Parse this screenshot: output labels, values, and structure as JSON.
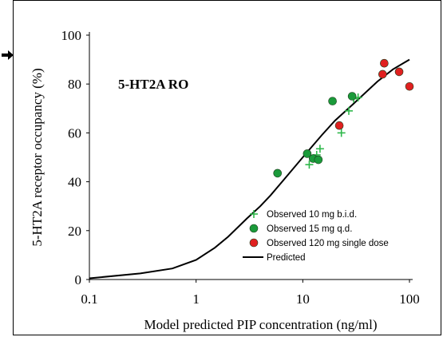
{
  "chart_data": {
    "type": "scatter",
    "title": "5-HT2A RO",
    "xlabel": "Model predicted PIP concentration (ng/ml)",
    "ylabel": "5-HT2A receptor occupancy (%)",
    "xscale": "log",
    "xlim": [
      0.1,
      100
    ],
    "ylim": [
      0,
      100
    ],
    "x_ticks": [
      "0.1",
      "1",
      "10",
      "100"
    ],
    "x_tick_values": [
      0.1,
      1,
      10,
      100
    ],
    "y_ticks": [
      "0",
      "20",
      "40",
      "60",
      "80",
      "100"
    ],
    "y_tick_values": [
      0,
      20,
      40,
      60,
      80,
      100
    ],
    "grid": false,
    "legend_position": "bottom-right",
    "series": [
      {
        "name": "Observed 10 mg b.i.d.",
        "marker": "plus",
        "color": "#2eb84a",
        "points": [
          [
            11.5,
            47
          ],
          [
            13.5,
            51
          ],
          [
            14.5,
            53.5
          ],
          [
            23,
            60
          ],
          [
            27,
            69
          ],
          [
            30,
            74
          ],
          [
            33,
            74.5
          ]
        ]
      },
      {
        "name": "Observed 15 mg q.d.",
        "marker": "circle",
        "color": "#1a9a3a",
        "points": [
          [
            5.8,
            43.5
          ],
          [
            11,
            51.5
          ],
          [
            12.5,
            49.5
          ],
          [
            14,
            49
          ],
          [
            19,
            73
          ],
          [
            29,
            75
          ]
        ]
      },
      {
        "name": "Observed 120 mg single dose",
        "marker": "circle",
        "color": "#e02020",
        "points": [
          [
            22,
            63
          ],
          [
            56,
            84
          ],
          [
            58,
            88.5
          ],
          [
            80,
            85
          ],
          [
            100,
            79
          ]
        ]
      },
      {
        "name": "Predicted",
        "marker": "line",
        "color": "#000000",
        "points": [
          [
            0.1,
            0.5
          ],
          [
            0.3,
            2.5
          ],
          [
            0.6,
            4.5
          ],
          [
            1,
            8
          ],
          [
            1.5,
            13
          ],
          [
            2,
            17.5
          ],
          [
            3,
            25
          ],
          [
            4,
            30
          ],
          [
            5,
            34.5
          ],
          [
            7,
            42
          ],
          [
            10,
            50
          ],
          [
            15,
            59
          ],
          [
            20,
            65
          ],
          [
            30,
            72
          ],
          [
            50,
            81
          ],
          [
            70,
            86
          ],
          [
            100,
            90
          ]
        ]
      }
    ]
  }
}
